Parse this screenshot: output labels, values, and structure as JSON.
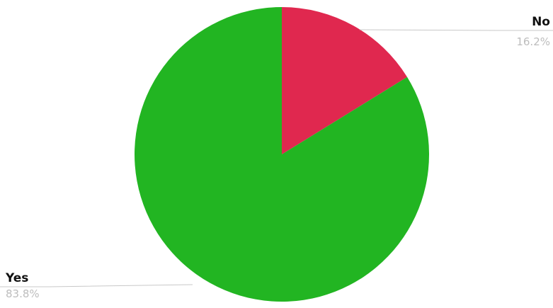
{
  "chart_data": {
    "type": "pie",
    "title": "",
    "slices": [
      {
        "label": "No",
        "value": 16.2,
        "display": "16.2%",
        "color": "#e0284f"
      },
      {
        "label": "Yes",
        "value": 83.8,
        "display": "83.8%",
        "color": "#22b522"
      }
    ],
    "start_angle": "12 o'clock, clockwise",
    "legend": "none"
  }
}
